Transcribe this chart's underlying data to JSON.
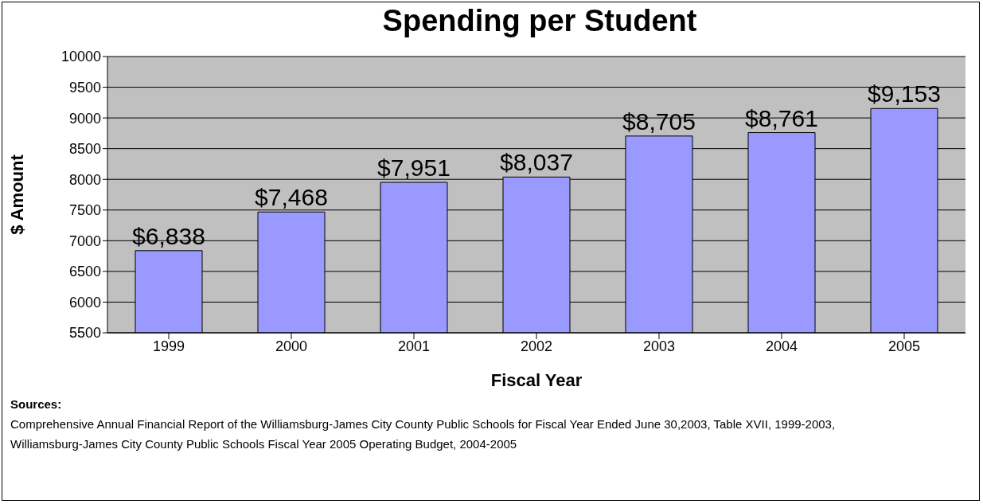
{
  "chart_data": {
    "type": "bar",
    "title": "Spending per Student",
    "xlabel": "Fiscal Year",
    "ylabel": "$ Amount",
    "categories": [
      "1999",
      "2000",
      "2001",
      "2002",
      "2003",
      "2004",
      "2005"
    ],
    "values": [
      6838,
      7468,
      7951,
      8037,
      8705,
      8761,
      9153
    ],
    "value_labels": [
      "$6,838",
      "$7,468",
      "$7,951",
      "$8,037",
      "$8,705",
      "$8,761",
      "$9,153"
    ],
    "color": "#9999ff",
    "ylim": [
      5500,
      10000
    ],
    "yticks": [
      5500,
      6000,
      6500,
      7000,
      7500,
      8000,
      8500,
      9000,
      9500,
      10000
    ],
    "grid": "y",
    "annotations": [
      "Sources:",
      "Comprehensive Annual Financial Report of the Williamsburg-James City County Public Schools for Fiscal Year Ended June 30,2003, Table XVII, 1999-2003,",
      "Williamsburg-James City County Public Schools Fiscal Year 2005 Operating Budget, 2004-2005"
    ]
  }
}
